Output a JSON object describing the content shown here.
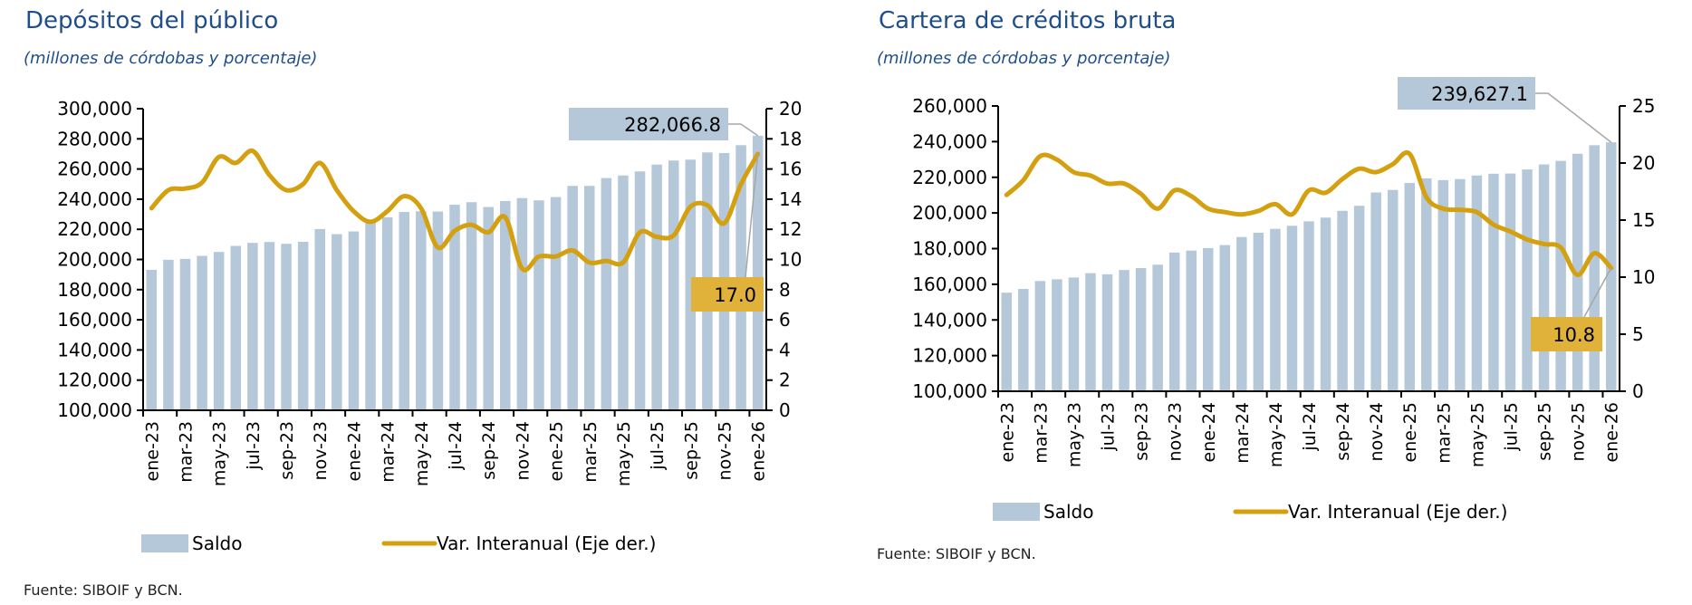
{
  "chart_data": [
    {
      "type": "bar",
      "title": "Depósitos del público",
      "subtitle": "(millones de córdobas y porcentaje)",
      "source": "Fuente: SIBOIF y BCN.",
      "xlabel": "",
      "ylabel": "",
      "ylim": [
        100000,
        300000
      ],
      "yticks": [
        100000,
        120000,
        140000,
        160000,
        180000,
        200000,
        220000,
        240000,
        260000,
        280000,
        300000
      ],
      "ytick_labels": [
        "100,000",
        "120,000",
        "140,000",
        "160,000",
        "180,000",
        "200,000",
        "220,000",
        "240,000",
        "260,000",
        "280,000",
        "300,000"
      ],
      "y2lim": [
        0,
        20
      ],
      "y2ticks": [
        0,
        2,
        4,
        6,
        8,
        10,
        12,
        14,
        16,
        18,
        20
      ],
      "y2tick_labels": [
        "0",
        "2",
        "4",
        "6",
        "8",
        "10",
        "12",
        "14",
        "16",
        "18",
        "20"
      ],
      "categories": [
        "ene-23",
        "feb-23",
        "mar-23",
        "abr-23",
        "may-23",
        "jun-23",
        "jul-23",
        "ago-23",
        "sep-23",
        "oct-23",
        "nov-23",
        "dic-23",
        "ene-24",
        "feb-24",
        "mar-24",
        "abr-24",
        "may-24",
        "jun-24",
        "jul-24",
        "ago-24",
        "sep-24",
        "oct-24",
        "nov-24",
        "dic-24",
        "ene-25",
        "feb-25",
        "mar-25",
        "abr-25",
        "may-25",
        "jun-25",
        "jul-25",
        "ago-25",
        "sep-25",
        "oct-25",
        "nov-25",
        "dic-25",
        "ene-26"
      ],
      "xtick_labels": [
        "ene-23",
        "mar-23",
        "may-23",
        "jul-23",
        "sep-23",
        "nov-23",
        "ene-24",
        "mar-24",
        "may-24",
        "jul-24",
        "sep-24",
        "nov-24",
        "ene-25",
        "mar-25",
        "may-25",
        "jul-25",
        "sep-25",
        "nov-25",
        "ene-26"
      ],
      "series": [
        {
          "name": "Saldo",
          "type": "bar",
          "axis": "left",
          "color": "#b4c8da",
          "values": [
            193100,
            199800,
            200400,
            202400,
            205000,
            209000,
            211000,
            211600,
            210400,
            211700,
            220200,
            216800,
            218600,
            226000,
            228000,
            231500,
            232000,
            231800,
            236300,
            238000,
            234800,
            238800,
            240700,
            239200,
            241400,
            248800,
            248800,
            254000,
            255700,
            258400,
            262900,
            265600,
            266200,
            271000,
            270600,
            275800,
            282066.8
          ]
        },
        {
          "name": "Var. Interanual (Eje der.)",
          "type": "line",
          "axis": "right",
          "color": "#d4a00f",
          "values": [
            13.4,
            14.6,
            14.7,
            15.1,
            16.8,
            16.4,
            17.2,
            15.6,
            14.6,
            15.0,
            16.4,
            14.6,
            13.2,
            12.5,
            13.2,
            14.2,
            13.4,
            10.8,
            11.9,
            12.3,
            11.8,
            12.8,
            9.4,
            10.2,
            10.2,
            10.6,
            9.8,
            9.9,
            9.8,
            11.8,
            11.5,
            11.6,
            13.5,
            13.6,
            12.4,
            15.0,
            17.0
          ]
        }
      ],
      "annotations": [
        {
          "series": "Saldo",
          "category": "ene-26",
          "label": "282,066.8"
        },
        {
          "series": "Var. Interanual (Eje der.)",
          "category": "ene-26",
          "label": "17.0"
        }
      ],
      "legend": {
        "position": "bottom",
        "items": [
          "Saldo",
          "Var. Interanual (Eje der.)"
        ]
      },
      "grid": false
    },
    {
      "type": "bar",
      "title": "Cartera de créditos bruta",
      "subtitle": "(millones de córdobas y porcentaje)",
      "source": "Fuente: SIBOIF y BCN.",
      "xlabel": "",
      "ylabel": "",
      "ylim": [
        100000,
        260000
      ],
      "yticks": [
        100000,
        120000,
        140000,
        160000,
        180000,
        200000,
        220000,
        240000,
        260000
      ],
      "ytick_labels": [
        "100,000",
        "120,000",
        "140,000",
        "160,000",
        "180,000",
        "200,000",
        "220,000",
        "240,000",
        "260,000"
      ],
      "y2lim": [
        0,
        25
      ],
      "y2ticks": [
        0,
        5,
        10,
        15,
        20,
        25
      ],
      "y2tick_labels": [
        "0",
        "5",
        "10",
        "15",
        "20",
        "25"
      ],
      "categories": [
        "ene-23",
        "feb-23",
        "mar-23",
        "abr-23",
        "may-23",
        "jun-23",
        "jul-23",
        "ago-23",
        "sep-23",
        "oct-23",
        "nov-23",
        "dic-23",
        "ene-24",
        "feb-24",
        "mar-24",
        "abr-24",
        "may-24",
        "jun-24",
        "jul-24",
        "ago-24",
        "sep-24",
        "oct-24",
        "nov-24",
        "dic-24",
        "ene-25",
        "feb-25",
        "mar-25",
        "abr-25",
        "may-25",
        "jun-25",
        "jul-25",
        "ago-25",
        "sep-25",
        "oct-25",
        "nov-25",
        "dic-25",
        "ene-26"
      ],
      "xtick_labels": [
        "ene-23",
        "mar-23",
        "may-23",
        "jul-23",
        "sep-23",
        "nov-23",
        "ene-24",
        "mar-24",
        "may-24",
        "jul-24",
        "sep-24",
        "nov-24",
        "ene-25",
        "mar-25",
        "may-25",
        "jul-25",
        "sep-25",
        "nov-25",
        "ene-26"
      ],
      "series": [
        {
          "name": "Saldo",
          "type": "bar",
          "axis": "left",
          "color": "#b4c8da",
          "values": [
            155300,
            157400,
            161800,
            162800,
            163800,
            166200,
            165600,
            168000,
            169100,
            171000,
            177800,
            178900,
            180300,
            182000,
            186500,
            188900,
            191100,
            192800,
            195300,
            197400,
            201200,
            204000,
            211500,
            212900,
            216800,
            219400,
            218400,
            219000,
            221000,
            222000,
            222100,
            224400,
            227200,
            229200,
            233200,
            238000,
            239627.1
          ]
        },
        {
          "name": "Var. Interanual (Eje der.)",
          "type": "line",
          "axis": "right",
          "color": "#d4a00f",
          "values": [
            17.2,
            18.5,
            20.6,
            20.3,
            19.2,
            18.9,
            18.2,
            18.2,
            17.3,
            16.0,
            17.6,
            17.1,
            16.0,
            15.7,
            15.5,
            15.8,
            16.4,
            15.5,
            17.6,
            17.4,
            18.6,
            19.5,
            19.2,
            19.9,
            20.8,
            17.0,
            16.0,
            15.9,
            15.7,
            14.6,
            14.0,
            13.3,
            12.9,
            12.6,
            10.2,
            12.1,
            10.8
          ]
        }
      ],
      "annotations": [
        {
          "series": "Saldo",
          "category": "ene-26",
          "label": "239,627.1"
        },
        {
          "series": "Var. Interanual (Eje der.)",
          "category": "ene-26",
          "label": "10.8"
        }
      ],
      "legend": {
        "position": "bottom",
        "items": [
          "Saldo",
          "Var. Interanual (Eje der.)"
        ]
      },
      "grid": false
    }
  ]
}
